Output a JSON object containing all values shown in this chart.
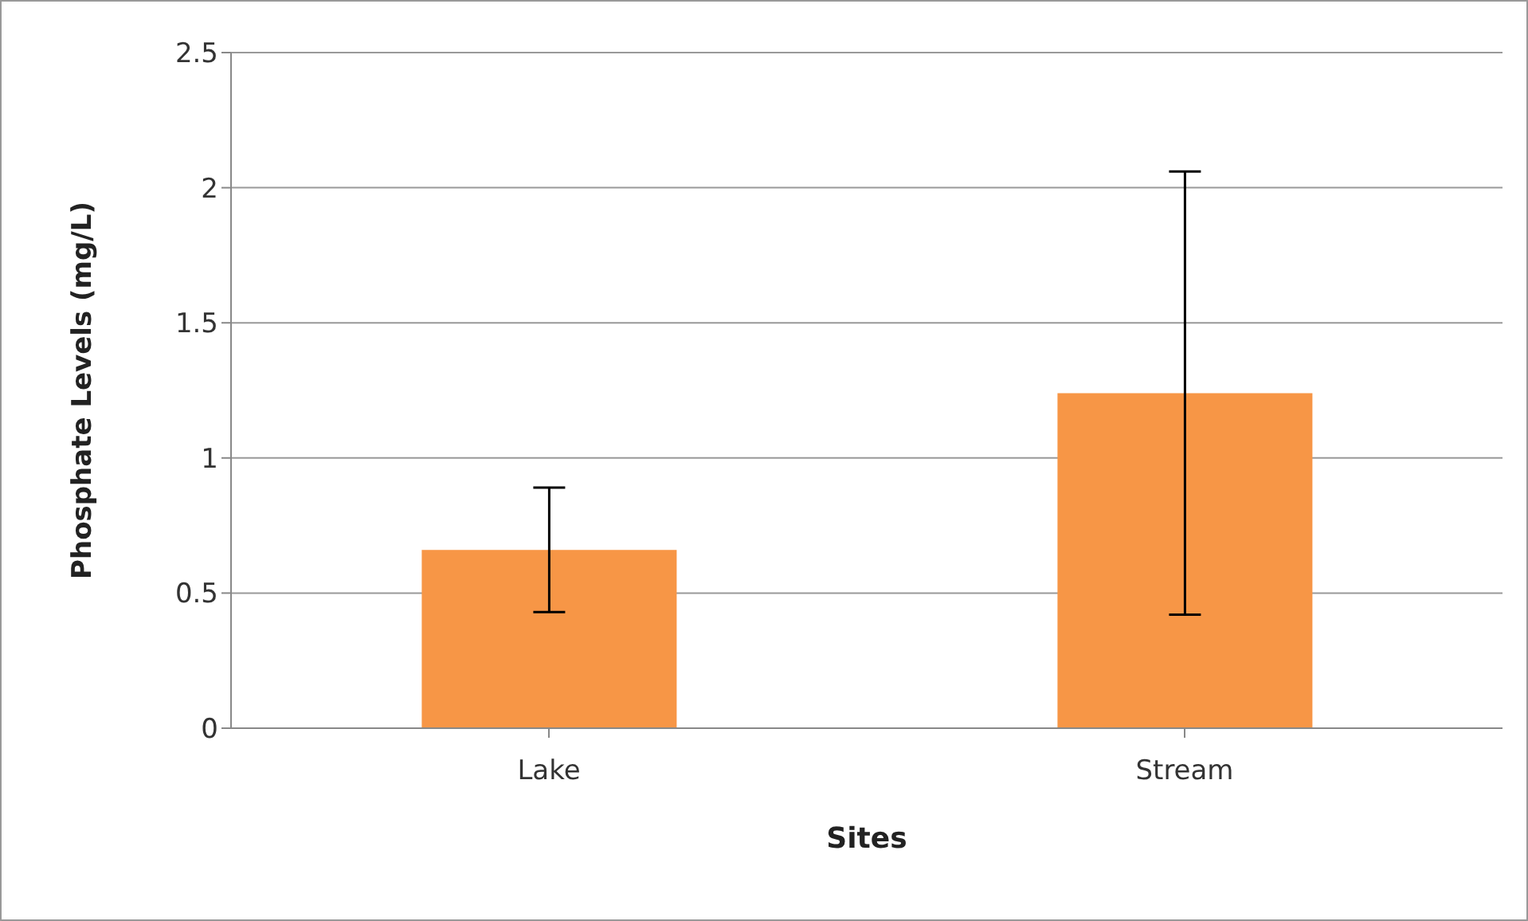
{
  "chart_data": {
    "type": "bar",
    "xlabel": "Sites",
    "ylabel": "Phosphate Levels (mg/L)",
    "categories": [
      "Lake",
      "Stream"
    ],
    "values": [
      0.66,
      1.24
    ],
    "errors": [
      0.23,
      0.82
    ],
    "color": "#f79646",
    "ylim": [
      0,
      2.5
    ],
    "yticks": [
      0,
      0.5,
      1,
      1.5,
      2,
      2.5
    ],
    "grid": "y",
    "legend": false
  }
}
